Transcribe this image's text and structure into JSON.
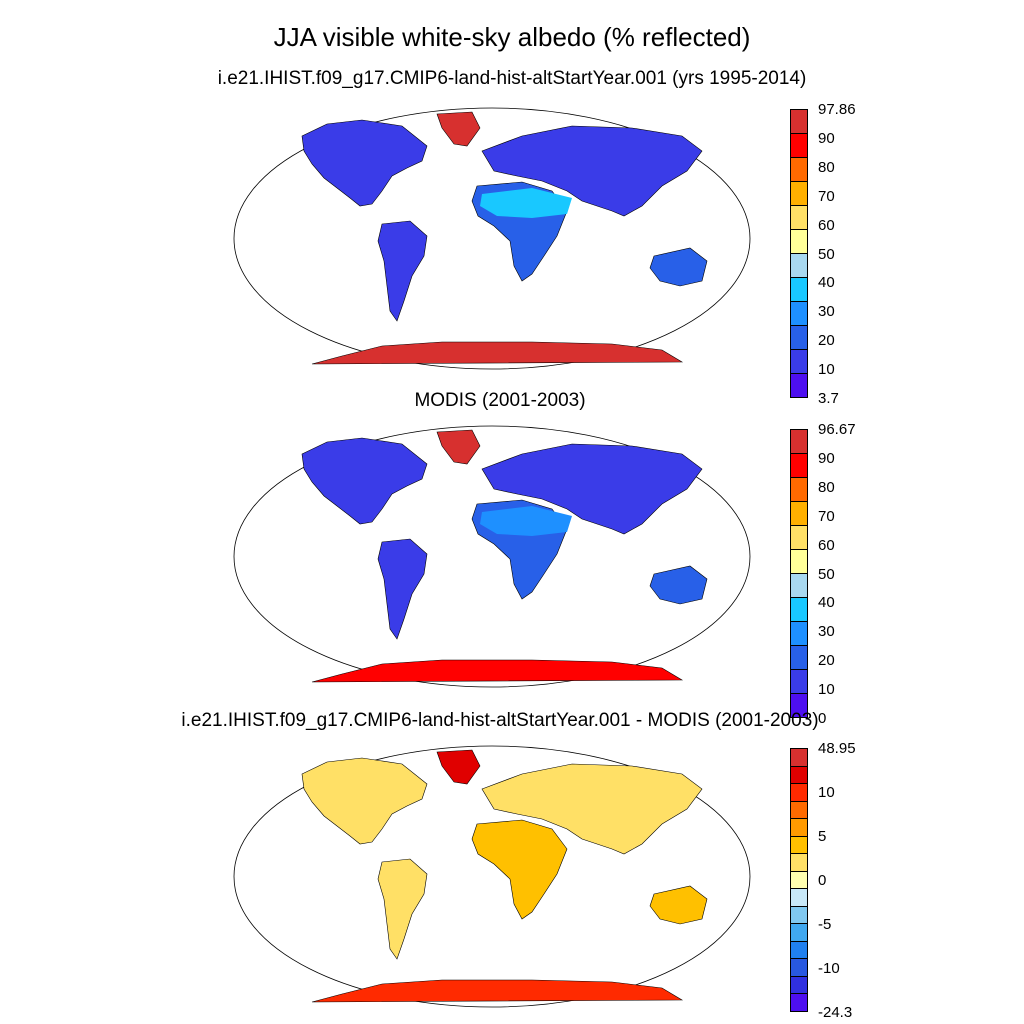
{
  "title": "JJA visible white-sky albedo (% reflected)",
  "panels": [
    {
      "subtitle": "i.e21.IHIST.f09_g17.CMIP6-land-hist-altStartYear.001 (yrs 1995-2014)",
      "colorbar_labels": [
        "97.86",
        "90",
        "80",
        "70",
        "60",
        "50",
        "40",
        "30",
        "20",
        "10",
        "3.7"
      ],
      "colors": [
        "#d7302f",
        "#ff0000",
        "#ff6a00",
        "#ffb000",
        "#ffe066",
        "#ffff99",
        "#a8d8f0",
        "#19c8ff",
        "#1e90ff",
        "#2860e8",
        "#3a3ce8",
        "#4d0ff0"
      ]
    },
    {
      "subtitle": "MODIS (2001-2003)",
      "colorbar_labels": [
        "96.67",
        "90",
        "80",
        "70",
        "60",
        "50",
        "40",
        "30",
        "20",
        "10",
        "0"
      ],
      "colors": [
        "#d7302f",
        "#ff0000",
        "#ff6a00",
        "#ffb000",
        "#ffe066",
        "#ffff99",
        "#a8d8f0",
        "#19c8ff",
        "#1e90ff",
        "#2860e8",
        "#3a3ce8",
        "#4d0ff0"
      ]
    },
    {
      "subtitle": "i.e21.IHIST.f09_g17.CMIP6-land-hist-altStartYear.001 - MODIS (2001-2003)",
      "colorbar_labels": [
        "48.95",
        "10",
        "5",
        "0",
        "-5",
        "-10",
        "-24.3"
      ],
      "colors": [
        "#d7302f",
        "#e00000",
        "#ff2a00",
        "#ff6a00",
        "#ff9a00",
        "#ffc000",
        "#ffe066",
        "#ffffb0",
        "#c8e8f8",
        "#80c8f0",
        "#40a8f0",
        "#2080f0",
        "#2858e0",
        "#3030e0",
        "#4d0ff0"
      ]
    }
  ]
}
